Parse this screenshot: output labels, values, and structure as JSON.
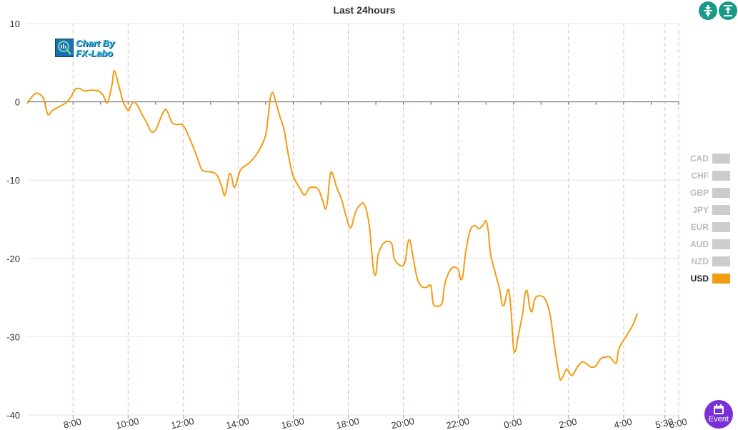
{
  "header": {
    "collapse_icon": "compress-vertical-icon",
    "expand_icon": "align-top-icon"
  },
  "logo": {
    "line1": "Chart By",
    "line2": "FX-Labo",
    "icon": "chart-magnifier-icon"
  },
  "legend": {
    "items": [
      {
        "label": "CAD",
        "color": "#cccccc",
        "active": false
      },
      {
        "label": "CHF",
        "color": "#cccccc",
        "active": false
      },
      {
        "label": "GBP",
        "color": "#cccccc",
        "active": false
      },
      {
        "label": "JPY",
        "color": "#cccccc",
        "active": false
      },
      {
        "label": "EUR",
        "color": "#cccccc",
        "active": false
      },
      {
        "label": "AUD",
        "color": "#cccccc",
        "active": false
      },
      {
        "label": "NZD",
        "color": "#cccccc",
        "active": false
      },
      {
        "label": "USD",
        "color": "#f39c12",
        "active": true
      }
    ]
  },
  "event_button": {
    "label": "Event",
    "icon": "calendar-icon"
  },
  "chart_data": {
    "type": "line",
    "title": "Last 24hours",
    "xlabel": "",
    "ylabel": "",
    "ylim": [
      -40,
      10
    ],
    "xlim": [
      "06:20",
      "06:00 (+1 day)"
    ],
    "y_ticks": [
      10,
      0,
      -10,
      -20,
      -30,
      -40
    ],
    "x_ticks": [
      "8:00",
      "10:00",
      "12:00",
      "14:00",
      "16:00",
      "18:00",
      "20:00",
      "22:00",
      "0:00",
      "2:00",
      "4:00",
      "5:30",
      "6:00"
    ],
    "grid": {
      "horizontal": true,
      "vertical_dashed": true
    },
    "legend_position": "right",
    "series": [
      {
        "name": "USD",
        "color": "#f39c12",
        "points": [
          [
            "6:20",
            -0.2
          ],
          [
            "6:30",
            0.6
          ],
          [
            "6:40",
            1.1
          ],
          [
            "6:55",
            0.5
          ],
          [
            "7:05",
            -1.6
          ],
          [
            "7:15",
            -1.1
          ],
          [
            "7:30",
            -0.6
          ],
          [
            "7:45",
            -0.1
          ],
          [
            "7:55",
            0.6
          ],
          [
            "8:05",
            1.6
          ],
          [
            "8:15",
            1.7
          ],
          [
            "8:25",
            1.4
          ],
          [
            "8:40",
            1.5
          ],
          [
            "8:55",
            1.4
          ],
          [
            "9:05",
            0.9
          ],
          [
            "9:15",
            -0.1
          ],
          [
            "9:25",
            2.2
          ],
          [
            "9:30",
            4.0
          ],
          [
            "9:40",
            2.0
          ],
          [
            "9:50",
            -0.1
          ],
          [
            "10:00",
            -1.1
          ],
          [
            "10:05",
            -0.6
          ],
          [
            "10:12",
            0.0
          ],
          [
            "10:20",
            -0.4
          ],
          [
            "10:30",
            -1.6
          ],
          [
            "10:40",
            -2.6
          ],
          [
            "10:50",
            -3.8
          ],
          [
            "11:00",
            -3.6
          ],
          [
            "11:10",
            -2.2
          ],
          [
            "11:20",
            -1.0
          ],
          [
            "11:27",
            -1.4
          ],
          [
            "11:35",
            -2.6
          ],
          [
            "11:45",
            -2.9
          ],
          [
            "12:00",
            -3.0
          ],
          [
            "12:15",
            -4.8
          ],
          [
            "12:30",
            -7.0
          ],
          [
            "12:40",
            -8.6
          ],
          [
            "12:50",
            -8.9
          ],
          [
            "13:05",
            -9.0
          ],
          [
            "13:15",
            -9.5
          ],
          [
            "13:25",
            -11.0
          ],
          [
            "13:30",
            -12.0
          ],
          [
            "13:35",
            -11.0
          ],
          [
            "13:40",
            -9.3
          ],
          [
            "13:45",
            -9.4
          ],
          [
            "13:50",
            -10.8
          ],
          [
            "13:55",
            -10.6
          ],
          [
            "14:05",
            -8.7
          ],
          [
            "14:20",
            -8.0
          ],
          [
            "14:35",
            -7.1
          ],
          [
            "14:50",
            -5.7
          ],
          [
            "15:00",
            -4.2
          ],
          [
            "15:05",
            -2.0
          ],
          [
            "15:10",
            0.5
          ],
          [
            "15:15",
            1.2
          ],
          [
            "15:20",
            0.4
          ],
          [
            "15:30",
            -1.7
          ],
          [
            "15:40",
            -3.6
          ],
          [
            "15:50",
            -7.0
          ],
          [
            "16:00",
            -9.5
          ],
          [
            "16:15",
            -11.1
          ],
          [
            "16:25",
            -11.9
          ],
          [
            "16:35",
            -11.0
          ],
          [
            "16:45",
            -10.9
          ],
          [
            "16:55",
            -11.2
          ],
          [
            "17:05",
            -12.8
          ],
          [
            "17:10",
            -13.7
          ],
          [
            "17:15",
            -12.5
          ],
          [
            "17:20",
            -9.5
          ],
          [
            "17:25",
            -9.1
          ],
          [
            "17:35",
            -11.0
          ],
          [
            "17:45",
            -12.4
          ],
          [
            "17:55",
            -14.6
          ],
          [
            "18:05",
            -16.1
          ],
          [
            "18:15",
            -14.2
          ],
          [
            "18:25",
            -13.2
          ],
          [
            "18:35",
            -13.1
          ],
          [
            "18:45",
            -15.5
          ],
          [
            "18:50",
            -18.5
          ],
          [
            "18:55",
            -21.5
          ],
          [
            "19:00",
            -22.0
          ],
          [
            "19:05",
            -19.5
          ],
          [
            "19:15",
            -18.2
          ],
          [
            "19:25",
            -17.8
          ],
          [
            "19:35",
            -18.2
          ],
          [
            "19:40",
            -20.0
          ],
          [
            "19:50",
            -20.8
          ],
          [
            "20:00",
            -20.9
          ],
          [
            "20:05",
            -20.0
          ],
          [
            "20:10",
            -17.9
          ],
          [
            "20:15",
            -17.8
          ],
          [
            "20:20",
            -19.5
          ],
          [
            "20:30",
            -22.5
          ],
          [
            "20:40",
            -23.6
          ],
          [
            "20:50",
            -23.7
          ],
          [
            "21:00",
            -23.5
          ],
          [
            "21:05",
            -25.8
          ],
          [
            "21:15",
            -26.1
          ],
          [
            "21:25",
            -25.6
          ],
          [
            "21:30",
            -23.3
          ],
          [
            "21:40",
            -21.7
          ],
          [
            "21:50",
            -21.1
          ],
          [
            "22:00",
            -21.5
          ],
          [
            "22:05",
            -22.7
          ],
          [
            "22:10",
            -22.1
          ],
          [
            "22:15",
            -19.5
          ],
          [
            "22:25",
            -16.5
          ],
          [
            "22:35",
            -15.8
          ],
          [
            "22:45",
            -16.2
          ],
          [
            "22:55",
            -15.6
          ],
          [
            "23:00",
            -15.2
          ],
          [
            "23:05",
            -16.5
          ],
          [
            "23:10",
            -19.5
          ],
          [
            "23:20",
            -21.8
          ],
          [
            "23:30",
            -24.0
          ],
          [
            "23:35",
            -25.8
          ],
          [
            "23:40",
            -25.9
          ],
          [
            "23:45",
            -24.5
          ],
          [
            "23:50",
            -24.1
          ],
          [
            "23:55",
            -27.0
          ],
          [
            "0:00",
            -31.5
          ],
          [
            "0:05",
            -31.7
          ],
          [
            "0:10",
            -30.0
          ],
          [
            "0:20",
            -27.0
          ],
          [
            "0:25",
            -24.6
          ],
          [
            "0:30",
            -24.2
          ],
          [
            "0:35",
            -26.2
          ],
          [
            "0:40",
            -26.8
          ],
          [
            "0:45",
            -25.5
          ],
          [
            "0:50",
            -24.9
          ],
          [
            "1:00",
            -24.8
          ],
          [
            "1:10",
            -25.3
          ],
          [
            "1:20",
            -27.3
          ],
          [
            "1:30",
            -31.5
          ],
          [
            "1:40",
            -35.1
          ],
          [
            "1:45",
            -35.4
          ],
          [
            "1:55",
            -34.2
          ],
          [
            "2:00",
            -34.4
          ],
          [
            "2:05",
            -34.9
          ],
          [
            "2:10",
            -34.8
          ],
          [
            "2:20",
            -33.8
          ],
          [
            "2:30",
            -33.2
          ],
          [
            "2:40",
            -33.5
          ],
          [
            "2:50",
            -33.9
          ],
          [
            "3:00",
            -33.7
          ],
          [
            "3:10",
            -32.8
          ],
          [
            "3:20",
            -32.6
          ],
          [
            "3:30",
            -32.6
          ],
          [
            "3:40",
            -33.3
          ],
          [
            "3:45",
            -33.2
          ],
          [
            "3:50",
            -31.5
          ],
          [
            "4:05",
            -30.0
          ],
          [
            "4:20",
            -28.5
          ],
          [
            "4:30",
            -27.0
          ]
        ]
      }
    ]
  }
}
